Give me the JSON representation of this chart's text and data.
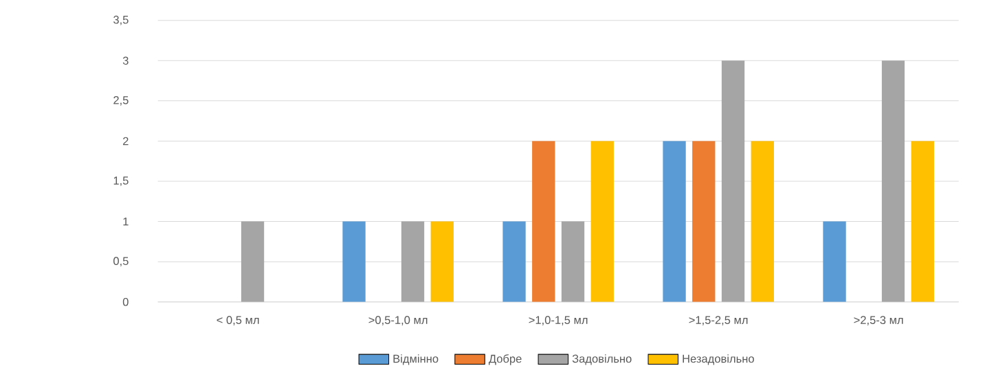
{
  "chart_data": {
    "type": "bar",
    "categories": [
      "< 0,5 мл",
      ">0,5-1,0 мл",
      ">1,0-1,5 мл",
      ">1,5-2,5 мл",
      ">2,5-3 мл"
    ],
    "series": [
      {
        "name": "Відмінно",
        "color": "#5b9bd5",
        "values": [
          0,
          1,
          1,
          2,
          1
        ]
      },
      {
        "name": "Добре",
        "color": "#ed7d31",
        "values": [
          0,
          0,
          2,
          2,
          0
        ]
      },
      {
        "name": "Задовільно",
        "color": "#a5a5a5",
        "values": [
          1,
          1,
          1,
          3,
          3
        ]
      },
      {
        "name": "Незадовільно",
        "color": "#ffc000",
        "values": [
          0,
          1,
          2,
          2,
          2
        ]
      }
    ],
    "ylim": [
      0,
      3.5
    ],
    "yticks": [
      0,
      {
        "value": 0.5,
        "label": "0,5"
      },
      1,
      {
        "value": 1.5,
        "label": "1,5"
      },
      2,
      {
        "value": 2.5,
        "label": "2,5"
      },
      3,
      {
        "value": 3.5,
        "label": "3,5"
      }
    ],
    "grid": "y",
    "legend": "bottom"
  }
}
